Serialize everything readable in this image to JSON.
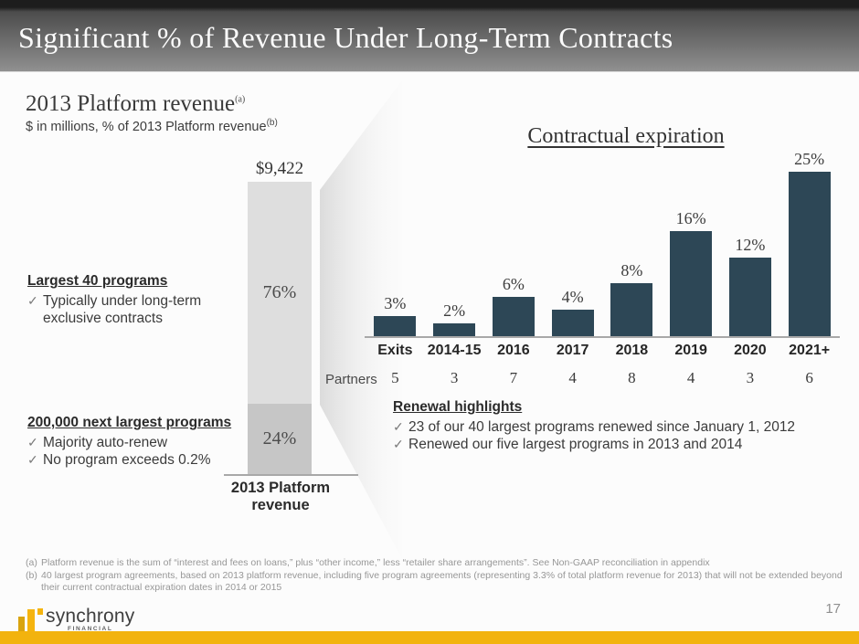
{
  "header": {
    "title": "Significant % of Revenue Under Long-Term Contracts"
  },
  "left_panel": {
    "heading": "2013 Platform revenue",
    "heading_sup": "(a)",
    "subtitle": "$ in millions, % of 2013 Platform revenue",
    "subtitle_sup": "(b)",
    "largest_programs": {
      "heading": "Largest 40 programs",
      "bullets": [
        "Typically under long-term exclusive contracts"
      ]
    },
    "next_largest_programs": {
      "heading": "200,000 next largest programs",
      "bullets": [
        "Majority auto-renew",
        "No program exceeds 0.2%"
      ]
    }
  },
  "renewal_highlights": {
    "heading": "Renewal highlights",
    "bullets": [
      "23 of our 40 largest programs renewed since January 1, 2012",
      "Renewed our five largest programs in 2013 and 2014"
    ]
  },
  "footnotes": [
    {
      "marker": "(a)",
      "text": "Platform revenue is the sum of “interest and fees on loans,” plus “other income,” less “retailer share arrangements”.  See Non-GAAP reconciliation in appendix"
    },
    {
      "marker": "(b)",
      "text": "40 largest program agreements, based on 2013 platform revenue, including five program agreements (representing 3.3% of total platform revenue for 2013) that will not be extended beyond their current contractual expiration dates in 2014 or 2015"
    }
  ],
  "footer": {
    "logo_text": "synchrony",
    "logo_subtext": "FINANCIAL",
    "page_number": "17"
  },
  "icons": {
    "check": "✓"
  },
  "colors": {
    "bar_dark_blue": "#2d4756",
    "stacked_light": "#dedede",
    "stacked_dark": "#c6c6c6",
    "accent_gold": "#f2b30e",
    "logo_gold_bright": "#f5b40e",
    "logo_gold_dark": "#d9a40f",
    "header_dark": "#1d1d1d"
  },
  "chart_data": [
    {
      "type": "bar",
      "stacked": true,
      "title": "2013 Platform revenue",
      "units": "% of 2013 Platform revenue; $ in millions",
      "total_label": "$9,422",
      "total_value_millions": 9422,
      "categories": [
        "2013 Platform revenue"
      ],
      "xlabel_lines": [
        "2013 Platform",
        "revenue"
      ],
      "series": [
        {
          "name": "Largest 40 programs",
          "values": [
            76
          ]
        },
        {
          "name": "200,000 next largest programs",
          "values": [
            24
          ]
        }
      ],
      "grid": false
    },
    {
      "type": "bar",
      "title": "Contractual expiration",
      "categories": [
        "Exits",
        "2014-15",
        "2016",
        "2017",
        "2018",
        "2019",
        "2020",
        "2021+"
      ],
      "values": [
        3,
        2,
        6,
        4,
        8,
        16,
        12,
        25
      ],
      "unit": "%",
      "partners_label": "Partners",
      "partners": [
        5,
        3,
        7,
        4,
        8,
        4,
        3,
        6
      ],
      "ylim": [
        0,
        25
      ],
      "grid": false,
      "legend": false
    }
  ]
}
